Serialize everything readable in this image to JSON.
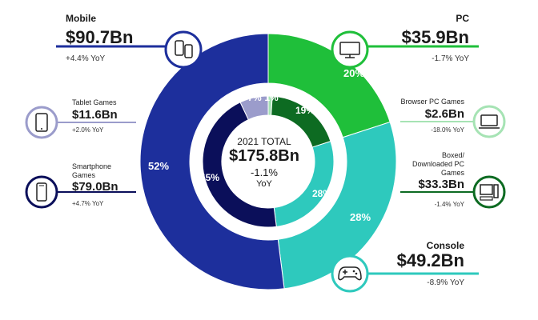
{
  "chart_data": {
    "type": "pie",
    "title": "2021 TOTAL",
    "total": "$175.8Bn",
    "total_yoy": "-1.1%",
    "total_yoy_unit": "YoY",
    "outer_ring": [
      {
        "name": "PC",
        "value": 20,
        "label": "20%",
        "revenue": "$35.9Bn",
        "yoy": "-1.7% YoY",
        "color": "#1fbf3a"
      },
      {
        "name": "Console",
        "value": 28,
        "label": "28%",
        "revenue": "$49.2Bn",
        "yoy": "-8.9% YoY",
        "color": "#2ec9bd"
      },
      {
        "name": "Mobile",
        "value": 52,
        "label": "52%",
        "revenue": "$90.7Bn",
        "yoy": "+4.4% YoY",
        "color": "#1d2f9c"
      }
    ],
    "inner_ring": [
      {
        "name": "Browser PC Games",
        "value": 1,
        "label": "1%",
        "revenue": "$2.6Bn",
        "yoy": "-18.0% YoY",
        "color": "#a6e3b4"
      },
      {
        "name": "Boxed/ Downloaded PC Games",
        "value": 19,
        "label": "19%",
        "revenue": "$33.3Bn",
        "yoy": "-1.4% YoY",
        "color": "#0d6b22"
      },
      {
        "name": "Console",
        "value": 28,
        "label": "28%",
        "color": "#2ec9bd"
      },
      {
        "name": "Smartphone Games",
        "value": 45,
        "label": "45%",
        "revenue": "$79.0Bn",
        "yoy": "+4.7% YoY",
        "color": "#0b0f5a"
      },
      {
        "name": "Tablet Games",
        "value": 7,
        "label": "7%",
        "revenue": "$11.6Bn",
        "yoy": "+2.0% YoY",
        "color": "#9b9ccb"
      }
    ]
  },
  "colors": {
    "mobile": "#1d2f9c",
    "smartphone": "#0b0f5a",
    "tablet": "#9b9ccb",
    "pc": "#1fbf3a",
    "boxed": "#0d6b22",
    "browser": "#a6e3b4",
    "console": "#2ec9bd"
  },
  "icons": {
    "mobile": "mobile-phones-icon",
    "tablet": "tablet-icon",
    "smartphone": "smartphone-icon",
    "pc": "desktop-monitor-icon",
    "browser": "laptop-icon",
    "boxed": "desktop-computer-icon",
    "console": "gamepad-icon"
  }
}
